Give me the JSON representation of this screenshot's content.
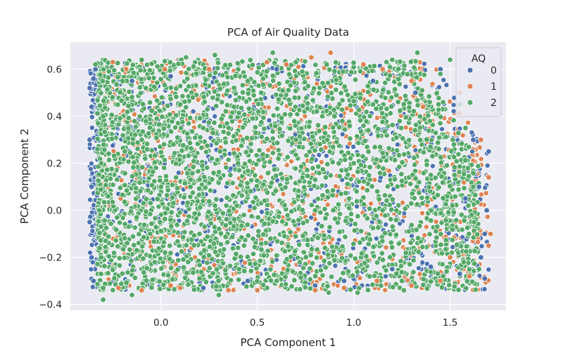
{
  "chart_data": {
    "type": "scatter",
    "title": "PCA of Air Quality Data",
    "xlabel": "PCA Component 1",
    "ylabel": "PCA Component 2",
    "xlim": [
      -0.47,
      1.79
    ],
    "ylim": [
      -0.425,
      0.715
    ],
    "x_ticks": [
      0.0,
      0.5,
      1.0,
      1.5
    ],
    "x_tick_labels": [
      "0.0",
      "0.5",
      "1.0",
      "1.5"
    ],
    "y_ticks": [
      -0.4,
      -0.2,
      0.0,
      0.2,
      0.4,
      0.6
    ],
    "y_tick_labels": [
      "−0.4",
      "−0.2",
      "0.0",
      "0.2",
      "0.4",
      "0.6"
    ],
    "grid": true,
    "legend": {
      "title": "AQ",
      "placement": "top-right",
      "entries": [
        "0",
        "1",
        "2"
      ]
    },
    "series": [
      {
        "name": "0",
        "color": "#4c72b0",
        "points": [
          [
            -0.37,
            0.52
          ],
          [
            -0.37,
            0.3
          ],
          [
            -0.36,
            0.1
          ],
          [
            -0.37,
            -0.05
          ],
          [
            -0.36,
            -0.2
          ],
          [
            -0.35,
            0.56
          ],
          [
            -0.36,
            0.44
          ],
          [
            -0.35,
            -0.3
          ],
          [
            -0.15,
            0.55
          ],
          [
            0.05,
            0.57
          ],
          [
            0.6,
            0.6
          ],
          [
            1.1,
            0.55
          ],
          [
            1.32,
            0.5
          ],
          [
            1.45,
            0.6
          ],
          [
            1.62,
            0.3
          ],
          [
            1.65,
            0.1
          ],
          [
            1.68,
            -0.1
          ],
          [
            1.66,
            -0.2
          ],
          [
            1.68,
            -0.29
          ],
          [
            1.55,
            -0.27
          ],
          [
            1.2,
            -0.25
          ],
          [
            0.95,
            -0.3
          ],
          [
            0.22,
            -0.33
          ],
          [
            0.45,
            -0.3
          ],
          [
            1.7,
            0.25
          ],
          [
            1.58,
            0.05
          ],
          [
            1.4,
            -0.24
          ],
          [
            0.8,
            -0.32
          ],
          [
            -0.34,
            0.6
          ],
          [
            1.69,
            0.0
          ]
        ]
      },
      {
        "name": "1",
        "color": "#dd8452",
        "points": [
          [
            -0.25,
            0.63
          ],
          [
            -0.18,
            0.6
          ],
          [
            0.02,
            0.6
          ],
          [
            0.25,
            0.6
          ],
          [
            0.55,
            0.63
          ],
          [
            0.78,
            0.65
          ],
          [
            0.88,
            0.67
          ],
          [
            1.05,
            0.62
          ],
          [
            1.15,
            0.6
          ],
          [
            1.3,
            0.55
          ],
          [
            1.55,
            0.5
          ],
          [
            1.66,
            0.3
          ],
          [
            1.7,
            0.14
          ],
          [
            1.71,
            -0.1
          ],
          [
            1.7,
            -0.15
          ],
          [
            1.6,
            -0.28
          ],
          [
            1.45,
            -0.3
          ],
          [
            1.3,
            -0.32
          ],
          [
            1.12,
            -0.3
          ],
          [
            0.95,
            -0.33
          ],
          [
            0.8,
            -0.34
          ],
          [
            0.5,
            -0.34
          ],
          [
            0.35,
            -0.34
          ],
          [
            0.1,
            -0.33
          ],
          [
            -0.1,
            -0.34
          ],
          [
            -0.22,
            -0.33
          ],
          [
            0.65,
            0.62
          ],
          [
            1.36,
            0.44
          ],
          [
            1.5,
            -0.2
          ],
          [
            0.05,
            -0.32
          ]
        ]
      },
      {
        "name": "2",
        "color": "#55a868",
        "points": [
          [
            -0.34,
            0.62
          ],
          [
            -0.3,
            0.4
          ],
          [
            -0.31,
            0.2
          ],
          [
            -0.32,
            0.0
          ],
          [
            -0.31,
            -0.2
          ],
          [
            -0.3,
            -0.33
          ],
          [
            -0.3,
            -0.38
          ],
          [
            -0.2,
            0.55
          ],
          [
            -0.1,
            0.3
          ],
          [
            0.0,
            0.1
          ],
          [
            0.13,
            0.65
          ],
          [
            0.28,
            0.66
          ],
          [
            0.2,
            -0.1
          ],
          [
            0.4,
            0.2
          ],
          [
            0.45,
            0.55
          ],
          [
            0.52,
            0.5
          ],
          [
            0.58,
            0.67
          ],
          [
            0.7,
            0.63
          ],
          [
            0.8,
            0.0
          ],
          [
            0.9,
            0.4
          ],
          [
            1.0,
            0.2
          ],
          [
            1.02,
            -0.35
          ],
          [
            1.1,
            0.45
          ],
          [
            1.2,
            0.64
          ],
          [
            1.33,
            0.67
          ],
          [
            1.4,
            0.15
          ],
          [
            1.5,
            0.64
          ],
          [
            1.58,
            0.35
          ],
          [
            1.65,
            -0.25
          ],
          [
            1.62,
            0.1
          ],
          [
            0.3,
            -0.36
          ],
          [
            -0.15,
            -0.36
          ],
          [
            0.6,
            -0.3
          ],
          [
            0.87,
            -0.35
          ],
          [
            1.25,
            -0.3
          ],
          [
            0.1,
            0.45
          ],
          [
            0.7,
            0.3
          ],
          [
            1.15,
            0.0
          ],
          [
            1.45,
            0.58
          ],
          [
            1.55,
            0.45
          ]
        ]
      }
    ]
  }
}
